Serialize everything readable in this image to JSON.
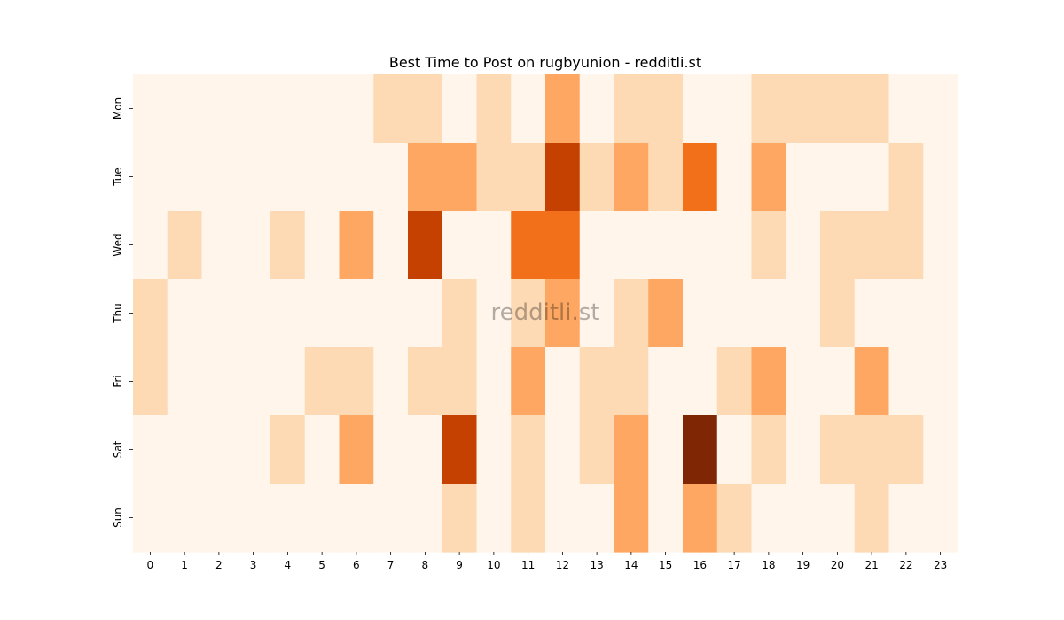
{
  "chart_data": {
    "type": "heatmap",
    "title": "Best Time to Post on rugbyunion - redditli.st",
    "watermark": "redditli.st",
    "xlabel": "",
    "ylabel": "",
    "x_categories": [
      "0",
      "1",
      "2",
      "3",
      "4",
      "5",
      "6",
      "7",
      "8",
      "9",
      "10",
      "11",
      "12",
      "13",
      "14",
      "15",
      "16",
      "17",
      "18",
      "19",
      "20",
      "21",
      "22",
      "23"
    ],
    "y_categories": [
      "Mon",
      "Tue",
      "Wed",
      "Thu",
      "Fri",
      "Sat",
      "Sun"
    ],
    "colorscale": [
      "#fff5eb",
      "#fdd9b4",
      "#fda762",
      "#f3701b",
      "#c54102",
      "#7f2704"
    ],
    "values": [
      [
        0,
        0,
        0,
        0,
        0,
        0,
        0,
        1,
        1,
        0,
        1,
        0,
        2,
        0,
        1,
        1,
        0,
        0,
        1,
        1,
        1,
        1,
        0,
        0
      ],
      [
        0,
        0,
        0,
        0,
        0,
        0,
        0,
        0,
        2,
        2,
        1,
        1,
        4,
        1,
        2,
        1,
        3,
        0,
        2,
        0,
        0,
        0,
        1,
        0
      ],
      [
        0,
        1,
        0,
        0,
        1,
        0,
        2,
        0,
        4,
        0,
        0,
        3,
        3,
        0,
        0,
        0,
        0,
        0,
        1,
        0,
        1,
        1,
        1,
        0
      ],
      [
        1,
        0,
        0,
        0,
        0,
        0,
        0,
        0,
        0,
        1,
        0,
        1,
        2,
        0,
        1,
        2,
        0,
        0,
        0,
        0,
        1,
        0,
        0,
        0
      ],
      [
        1,
        0,
        0,
        0,
        0,
        1,
        1,
        0,
        1,
        1,
        0,
        2,
        0,
        1,
        1,
        0,
        0,
        1,
        2,
        0,
        0,
        2,
        0,
        0
      ],
      [
        0,
        0,
        0,
        0,
        1,
        0,
        2,
        0,
        0,
        4,
        0,
        1,
        0,
        1,
        2,
        0,
        5,
        0,
        1,
        0,
        1,
        1,
        1,
        0
      ],
      [
        0,
        0,
        0,
        0,
        0,
        0,
        0,
        0,
        0,
        1,
        0,
        1,
        0,
        0,
        2,
        0,
        2,
        1,
        0,
        0,
        0,
        1,
        0,
        0
      ]
    ],
    "grid": false,
    "legend": "none"
  }
}
